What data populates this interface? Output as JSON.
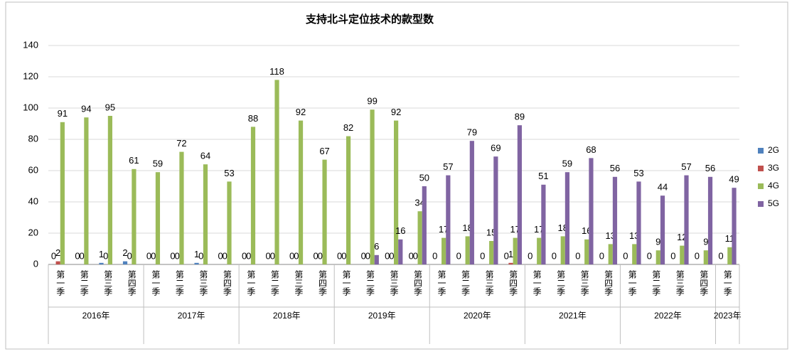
{
  "chart_data": {
    "type": "bar",
    "title": "支持北斗定位技术的款型数",
    "categories": [
      "第一季",
      "第二季",
      "第三季",
      "第四季",
      "第一季",
      "第二季",
      "第三季",
      "第四季",
      "第一季",
      "第二季",
      "第三季",
      "第四季",
      "第一季",
      "第二季",
      "第三季",
      "第四季",
      "第一季",
      "第二季",
      "第三季",
      "第四季",
      "第一季",
      "第二季",
      "第三季",
      "第四季",
      "第一季",
      "第二季",
      "第三季",
      "第四季",
      "第一季"
    ],
    "category_groups": [
      {
        "label": "2016年",
        "count": 4
      },
      {
        "label": "2017年",
        "count": 4
      },
      {
        "label": "2018年",
        "count": 4
      },
      {
        "label": "2019年",
        "count": 4
      },
      {
        "label": "2020年",
        "count": 4
      },
      {
        "label": "2021年",
        "count": 4
      },
      {
        "label": "2022年",
        "count": 4
      },
      {
        "label": "2023年",
        "count": 1
      }
    ],
    "series": [
      {
        "name": "2G",
        "color": "#4f81bd",
        "values": [
          0,
          0,
          1,
          2,
          0,
          0,
          1,
          0,
          0,
          0,
          0,
          0,
          0,
          0,
          0,
          0,
          0,
          0,
          0,
          0,
          0,
          0,
          0,
          0,
          0,
          0,
          0,
          0,
          0
        ]
      },
      {
        "name": "3G",
        "color": "#c0504d",
        "values": [
          2,
          0,
          0,
          0,
          0,
          0,
          0,
          0,
          0,
          0,
          0,
          0,
          0,
          0,
          0,
          0,
          null,
          null,
          null,
          1,
          null,
          null,
          null,
          null,
          null,
          null,
          null,
          null,
          null
        ]
      },
      {
        "name": "4G",
        "color": "#9bbb59",
        "values": [
          91,
          94,
          95,
          61,
          59,
          72,
          64,
          53,
          88,
          118,
          92,
          67,
          82,
          99,
          92,
          34,
          17,
          18,
          15,
          17,
          17,
          18,
          16,
          13,
          13,
          9,
          12,
          9,
          11
        ]
      },
      {
        "name": "5G",
        "color": "#8064a2",
        "values": [
          null,
          null,
          null,
          null,
          null,
          null,
          null,
          null,
          null,
          null,
          null,
          null,
          null,
          6,
          16,
          50,
          57,
          79,
          69,
          89,
          51,
          59,
          68,
          56,
          53,
          44,
          57,
          56,
          49
        ]
      }
    ],
    "ylim": [
      0,
      140
    ],
    "yticks": [
      0,
      20,
      40,
      60,
      80,
      100,
      120,
      140
    ],
    "grid": true,
    "legend": "right"
  }
}
